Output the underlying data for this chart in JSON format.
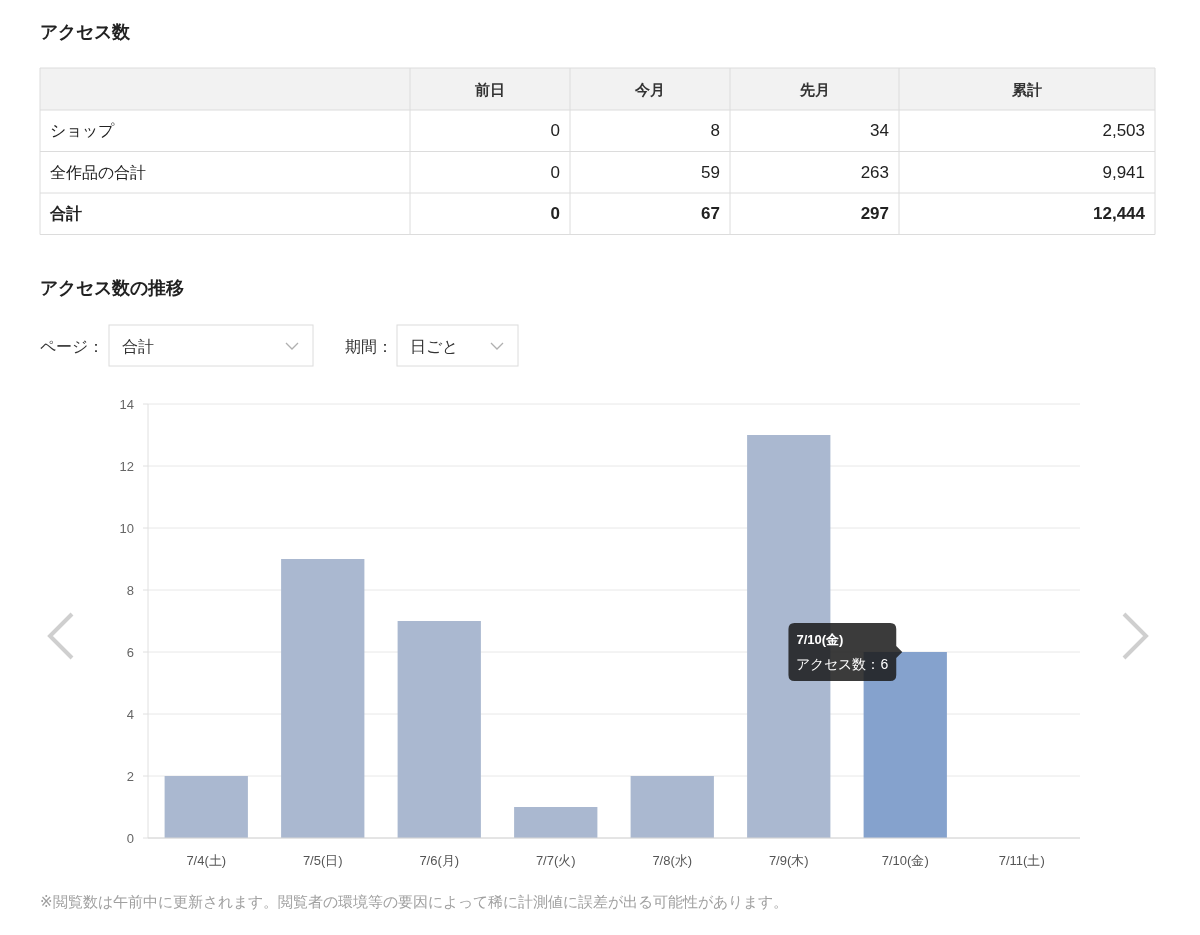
{
  "chart_data": [
    {
      "type": "other",
      "title": "アクセス数",
      "categories": [
        "前日",
        "今月",
        "先月",
        "累計"
      ],
      "series": [
        {
          "name": "ショップ",
          "values": [
            0,
            8,
            34,
            2503
          ],
          "value_labels": [
            "0",
            "8",
            "34",
            "2,503"
          ]
        },
        {
          "name": "全作品の合計",
          "values": [
            0,
            59,
            263,
            9941
          ],
          "value_labels": [
            "0",
            "59",
            "263",
            "9,941"
          ]
        },
        {
          "name": "合計",
          "values": [
            0,
            67,
            297,
            12444
          ],
          "value_labels": [
            "0",
            "67",
            "297",
            "12,444"
          ]
        }
      ]
    },
    {
      "type": "bar",
      "title": "アクセス数の推移",
      "categories": [
        "7/4(土)",
        "7/5(日)",
        "7/6(月)",
        "7/7(火)",
        "7/8(水)",
        "7/9(木)",
        "7/10(金)",
        "7/11(土)"
      ],
      "values": [
        2,
        9,
        7,
        1,
        2,
        13,
        6,
        0
      ],
      "colors": [
        "#aab8d0",
        "#aab8d0",
        "#aab8d0",
        "#aab8d0",
        "#aab8d0",
        "#aab8d0",
        "#85a2cd",
        "#aab8d0"
      ],
      "ylim": [
        0,
        14
      ],
      "yticks": [
        0,
        2,
        4,
        6,
        8,
        10,
        12,
        14
      ],
      "grid": "y",
      "annotations": [
        "ページ：",
        "合計",
        "期間：",
        "日ごと",
        {
          "text": "7/10(金)\nアクセス数：6",
          "x": "7/10(金)",
          "y": 6
        },
        "※閲覧数は午前中に更新されます。閲覧者の環境等の要因によって稀に計測値に誤差が出る可能性があります。"
      ]
    }
  ]
}
